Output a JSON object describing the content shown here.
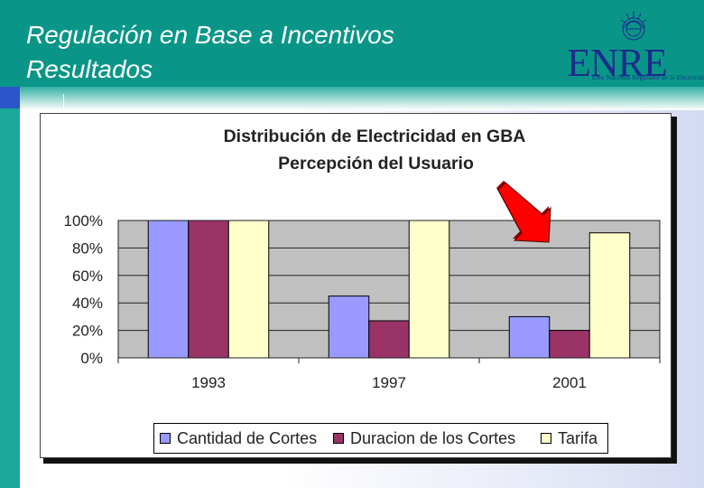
{
  "slide": {
    "title_line_1": "Regulación en Base a Incentivos",
    "title_line_2": "Resultados"
  },
  "logo": {
    "text": "ENRE",
    "subtitle": "Ente Nacional Regulador de la Electricidad"
  },
  "colors": {
    "header": "#099688",
    "series": [
      "#9999ff",
      "#993366",
      "#ffffcc"
    ],
    "plot_bg": "#c0c0c0",
    "arrow": "#ff0000"
  },
  "chart_data": {
    "type": "bar",
    "title": "Distribución de Electricidad en GBA",
    "subtitle": "Percepción del Usuario",
    "categories": [
      "1993",
      "1997",
      "2001"
    ],
    "series": [
      {
        "name": "Cantidad de Cortes",
        "values": [
          100,
          45,
          30
        ]
      },
      {
        "name": "Duracion de los Cortes",
        "values": [
          100,
          27,
          20
        ]
      },
      {
        "name": "Tarifa",
        "values": [
          100,
          100,
          91
        ]
      }
    ],
    "y_ticks": [
      "0%",
      "20%",
      "40%",
      "60%",
      "80%",
      "100%"
    ],
    "ylim": [
      0,
      100
    ],
    "grid": true,
    "legend_position": "bottom",
    "annotation": "red arrow pointing at 2001"
  }
}
